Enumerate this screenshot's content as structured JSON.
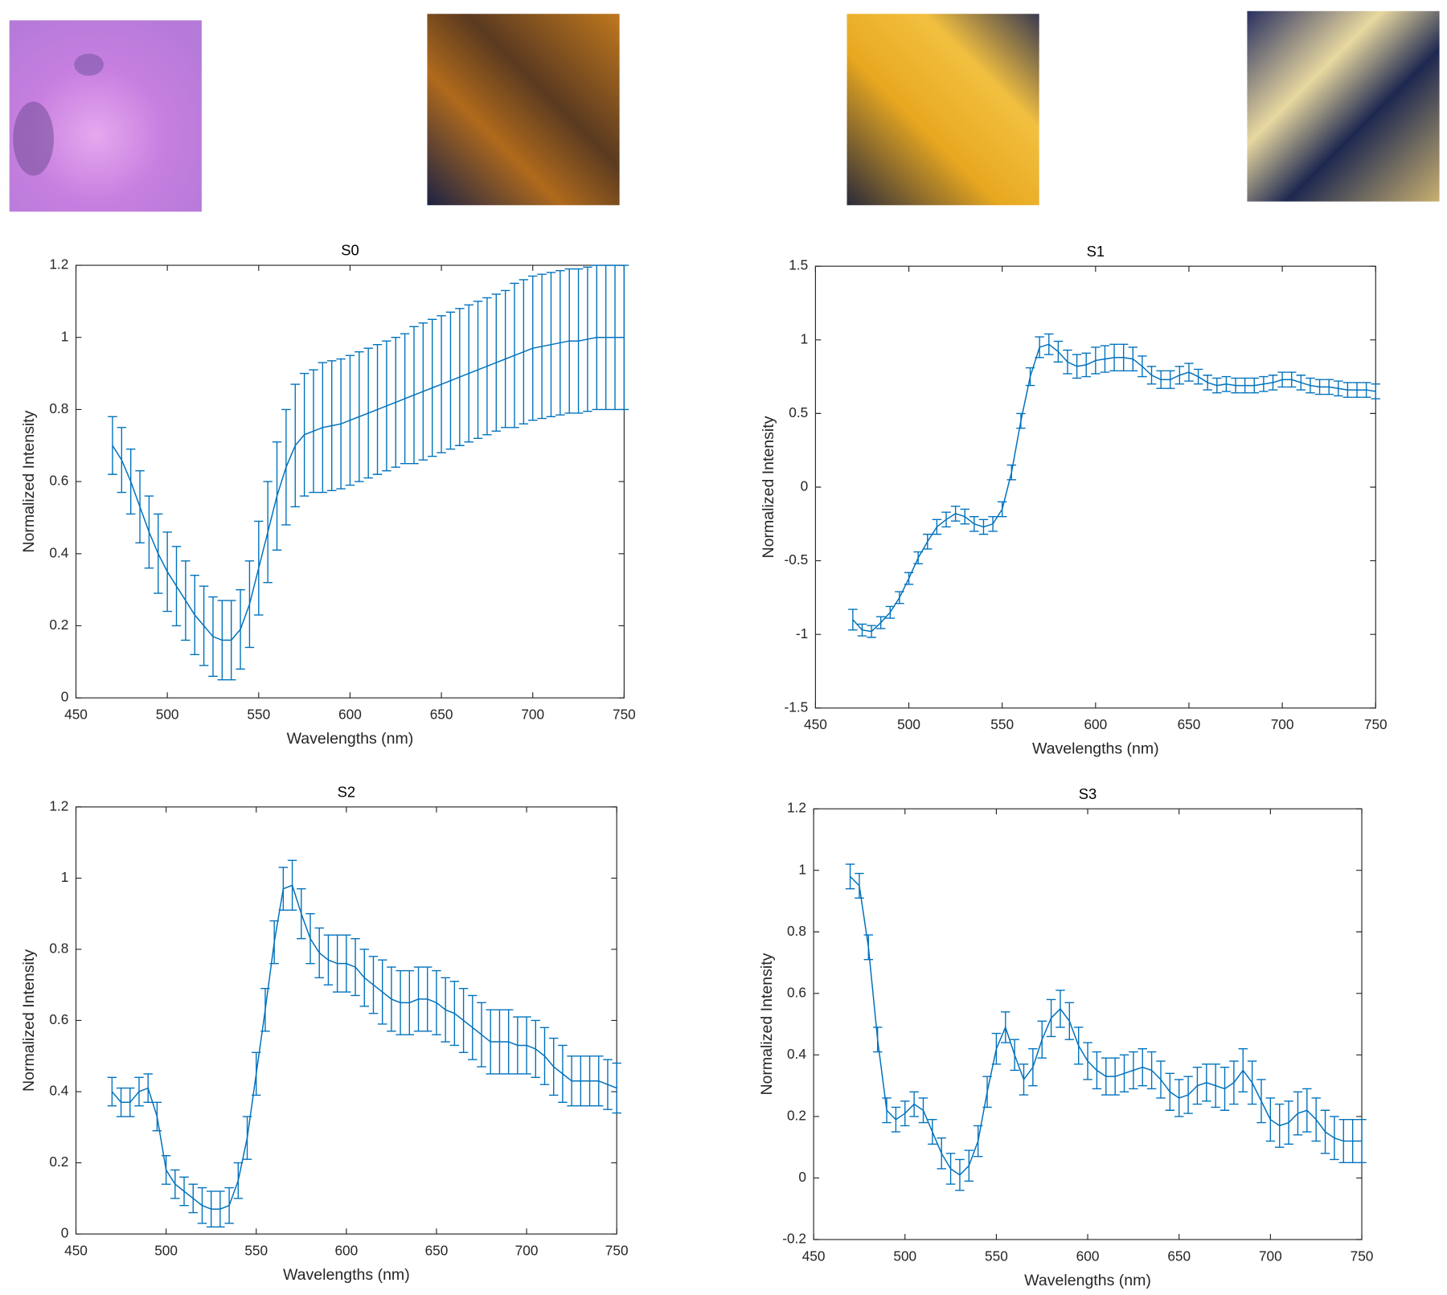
{
  "chart_data": [
    {
      "type": "errorbar",
      "title": "S0",
      "xlabel": "Wavelengths (nm)",
      "ylabel": "Normalized Intensity",
      "xlim": [
        450,
        750
      ],
      "xticks": [
        450,
        500,
        550,
        600,
        650,
        700,
        750
      ],
      "ylim": [
        0,
        1.2
      ],
      "yticks": [
        0,
        0.2,
        0.4,
        0.6,
        0.8,
        1,
        1.2
      ],
      "x": [
        470,
        475,
        480,
        485,
        490,
        495,
        500,
        505,
        510,
        515,
        520,
        525,
        530,
        535,
        540,
        545,
        550,
        555,
        560,
        565,
        570,
        575,
        580,
        585,
        590,
        595,
        600,
        605,
        610,
        615,
        620,
        625,
        630,
        635,
        640,
        645,
        650,
        655,
        660,
        665,
        670,
        675,
        680,
        685,
        690,
        695,
        700,
        705,
        710,
        715,
        720,
        725,
        730,
        735,
        740,
        745,
        750
      ],
      "series": [
        {
          "color": "#0072bd",
          "values": [
            0.7,
            0.66,
            0.6,
            0.53,
            0.46,
            0.4,
            0.35,
            0.31,
            0.27,
            0.23,
            0.2,
            0.17,
            0.16,
            0.16,
            0.19,
            0.26,
            0.36,
            0.46,
            0.56,
            0.64,
            0.7,
            0.73,
            0.74,
            0.75,
            0.755,
            0.76,
            0.77,
            0.78,
            0.79,
            0.8,
            0.81,
            0.82,
            0.83,
            0.84,
            0.85,
            0.86,
            0.87,
            0.88,
            0.89,
            0.9,
            0.91,
            0.92,
            0.93,
            0.94,
            0.95,
            0.96,
            0.97,
            0.975,
            0.98,
            0.985,
            0.99,
            0.99,
            0.995,
            1,
            1,
            1,
            1
          ],
          "errors": [
            0.08,
            0.09,
            0.09,
            0.1,
            0.1,
            0.11,
            0.11,
            0.11,
            0.11,
            0.11,
            0.11,
            0.11,
            0.11,
            0.11,
            0.11,
            0.12,
            0.13,
            0.14,
            0.15,
            0.16,
            0.17,
            0.17,
            0.17,
            0.18,
            0.18,
            0.18,
            0.18,
            0.18,
            0.18,
            0.18,
            0.18,
            0.18,
            0.18,
            0.19,
            0.19,
            0.19,
            0.19,
            0.19,
            0.19,
            0.19,
            0.19,
            0.19,
            0.19,
            0.19,
            0.2,
            0.2,
            0.2,
            0.2,
            0.2,
            0.2,
            0.2,
            0.2,
            0.2,
            0.2,
            0.2,
            0.2,
            0.2
          ]
        }
      ]
    },
    {
      "type": "errorbar",
      "title": "S1",
      "xlabel": "Wavelengths (nm)",
      "ylabel": "Normalized Intensity",
      "xlim": [
        450,
        750
      ],
      "xticks": [
        450,
        500,
        550,
        600,
        650,
        700,
        750
      ],
      "ylim": [
        -1.5,
        1.5
      ],
      "yticks": [
        -1.5,
        -1,
        -0.5,
        0,
        0.5,
        1,
        1.5
      ],
      "x": [
        470,
        475,
        480,
        485,
        490,
        495,
        500,
        505,
        510,
        515,
        520,
        525,
        530,
        535,
        540,
        545,
        550,
        555,
        560,
        565,
        570,
        575,
        580,
        585,
        590,
        595,
        600,
        605,
        610,
        615,
        620,
        625,
        630,
        635,
        640,
        645,
        650,
        655,
        660,
        665,
        670,
        675,
        680,
        685,
        690,
        695,
        700,
        705,
        710,
        715,
        720,
        725,
        730,
        735,
        740,
        745,
        750
      ],
      "series": [
        {
          "color": "#0072bd",
          "values": [
            -0.9,
            -0.97,
            -0.98,
            -0.92,
            -0.85,
            -0.75,
            -0.62,
            -0.48,
            -0.37,
            -0.27,
            -0.22,
            -0.18,
            -0.2,
            -0.25,
            -0.27,
            -0.25,
            -0.15,
            0.1,
            0.45,
            0.75,
            0.95,
            0.97,
            0.92,
            0.85,
            0.82,
            0.83,
            0.86,
            0.87,
            0.88,
            0.88,
            0.87,
            0.82,
            0.76,
            0.73,
            0.73,
            0.76,
            0.78,
            0.75,
            0.71,
            0.69,
            0.7,
            0.69,
            0.69,
            0.69,
            0.7,
            0.71,
            0.73,
            0.73,
            0.71,
            0.69,
            0.68,
            0.68,
            0.67,
            0.66,
            0.66,
            0.66,
            0.65
          ],
          "errors": [
            0.07,
            0.04,
            0.04,
            0.04,
            0.04,
            0.04,
            0.04,
            0.04,
            0.05,
            0.05,
            0.05,
            0.05,
            0.05,
            0.05,
            0.05,
            0.05,
            0.05,
            0.05,
            0.05,
            0.06,
            0.07,
            0.07,
            0.07,
            0.08,
            0.08,
            0.08,
            0.09,
            0.09,
            0.09,
            0.09,
            0.08,
            0.07,
            0.06,
            0.06,
            0.06,
            0.06,
            0.06,
            0.05,
            0.05,
            0.05,
            0.05,
            0.05,
            0.05,
            0.05,
            0.05,
            0.05,
            0.05,
            0.05,
            0.05,
            0.05,
            0.05,
            0.05,
            0.05,
            0.05,
            0.05,
            0.05,
            0.05
          ]
        }
      ]
    },
    {
      "type": "errorbar",
      "title": "S2",
      "xlabel": "Wavelengths (nm)",
      "ylabel": "Normalized Intensity",
      "xlim": [
        450,
        750
      ],
      "xticks": [
        450,
        500,
        550,
        600,
        650,
        700,
        750
      ],
      "ylim": [
        0,
        1.2
      ],
      "yticks": [
        0,
        0.2,
        0.4,
        0.6,
        0.8,
        1,
        1.2
      ],
      "x": [
        470,
        475,
        480,
        485,
        490,
        495,
        500,
        505,
        510,
        515,
        520,
        525,
        530,
        535,
        540,
        545,
        550,
        555,
        560,
        565,
        570,
        575,
        580,
        585,
        590,
        595,
        600,
        605,
        610,
        615,
        620,
        625,
        630,
        635,
        640,
        645,
        650,
        655,
        660,
        665,
        670,
        675,
        680,
        685,
        690,
        695,
        700,
        705,
        710,
        715,
        720,
        725,
        730,
        735,
        740,
        745,
        750
      ],
      "series": [
        {
          "color": "#0072bd",
          "values": [
            0.4,
            0.37,
            0.37,
            0.4,
            0.41,
            0.33,
            0.18,
            0.14,
            0.12,
            0.1,
            0.08,
            0.07,
            0.07,
            0.08,
            0.15,
            0.27,
            0.45,
            0.63,
            0.82,
            0.97,
            0.98,
            0.9,
            0.83,
            0.79,
            0.77,
            0.76,
            0.76,
            0.75,
            0.72,
            0.7,
            0.68,
            0.66,
            0.65,
            0.65,
            0.66,
            0.66,
            0.65,
            0.63,
            0.62,
            0.6,
            0.58,
            0.56,
            0.54,
            0.54,
            0.54,
            0.53,
            0.53,
            0.52,
            0.5,
            0.47,
            0.45,
            0.43,
            0.43,
            0.43,
            0.43,
            0.42,
            0.41
          ],
          "errors": [
            0.04,
            0.04,
            0.04,
            0.04,
            0.04,
            0.04,
            0.04,
            0.04,
            0.04,
            0.04,
            0.05,
            0.05,
            0.05,
            0.05,
            0.05,
            0.06,
            0.06,
            0.06,
            0.06,
            0.06,
            0.07,
            0.07,
            0.07,
            0.07,
            0.07,
            0.08,
            0.08,
            0.08,
            0.08,
            0.08,
            0.09,
            0.09,
            0.09,
            0.09,
            0.09,
            0.09,
            0.09,
            0.09,
            0.09,
            0.09,
            0.09,
            0.09,
            0.09,
            0.09,
            0.09,
            0.08,
            0.08,
            0.08,
            0.08,
            0.08,
            0.08,
            0.07,
            0.07,
            0.07,
            0.07,
            0.07,
            0.07
          ]
        }
      ]
    },
    {
      "type": "errorbar",
      "title": "S3",
      "xlabel": "Wavelengths (nm)",
      "ylabel": "Normalized Intensity",
      "xlim": [
        450,
        750
      ],
      "xticks": [
        450,
        500,
        550,
        600,
        650,
        700,
        750
      ],
      "ylim": [
        -0.2,
        1.2
      ],
      "yticks": [
        -0.2,
        0,
        0.2,
        0.4,
        0.6,
        0.8,
        1,
        1.2
      ],
      "x": [
        470,
        475,
        480,
        485,
        490,
        495,
        500,
        505,
        510,
        515,
        520,
        525,
        530,
        535,
        540,
        545,
        550,
        555,
        560,
        565,
        570,
        575,
        580,
        585,
        590,
        595,
        600,
        605,
        610,
        615,
        620,
        625,
        630,
        635,
        640,
        645,
        650,
        655,
        660,
        665,
        670,
        675,
        680,
        685,
        690,
        695,
        700,
        705,
        710,
        715,
        720,
        725,
        730,
        735,
        740,
        745,
        750
      ],
      "series": [
        {
          "color": "#0072bd",
          "values": [
            0.98,
            0.95,
            0.75,
            0.45,
            0.22,
            0.19,
            0.21,
            0.24,
            0.22,
            0.15,
            0.08,
            0.03,
            0.01,
            0.04,
            0.12,
            0.28,
            0.42,
            0.49,
            0.4,
            0.32,
            0.36,
            0.45,
            0.52,
            0.55,
            0.51,
            0.43,
            0.38,
            0.35,
            0.33,
            0.33,
            0.34,
            0.35,
            0.36,
            0.35,
            0.32,
            0.28,
            0.26,
            0.27,
            0.3,
            0.31,
            0.3,
            0.29,
            0.31,
            0.35,
            0.31,
            0.25,
            0.19,
            0.17,
            0.18,
            0.21,
            0.22,
            0.19,
            0.15,
            0.13,
            0.12,
            0.12,
            0.12
          ],
          "errors": [
            0.04,
            0.04,
            0.04,
            0.04,
            0.04,
            0.04,
            0.04,
            0.04,
            0.04,
            0.04,
            0.05,
            0.05,
            0.05,
            0.05,
            0.05,
            0.05,
            0.05,
            0.05,
            0.05,
            0.05,
            0.06,
            0.06,
            0.06,
            0.06,
            0.06,
            0.06,
            0.06,
            0.06,
            0.06,
            0.06,
            0.06,
            0.06,
            0.06,
            0.06,
            0.06,
            0.06,
            0.06,
            0.06,
            0.06,
            0.06,
            0.07,
            0.07,
            0.07,
            0.07,
            0.07,
            0.07,
            0.07,
            0.07,
            0.07,
            0.07,
            0.07,
            0.07,
            0.07,
            0.07,
            0.07,
            0.07,
            0.07
          ]
        }
      ]
    }
  ]
}
